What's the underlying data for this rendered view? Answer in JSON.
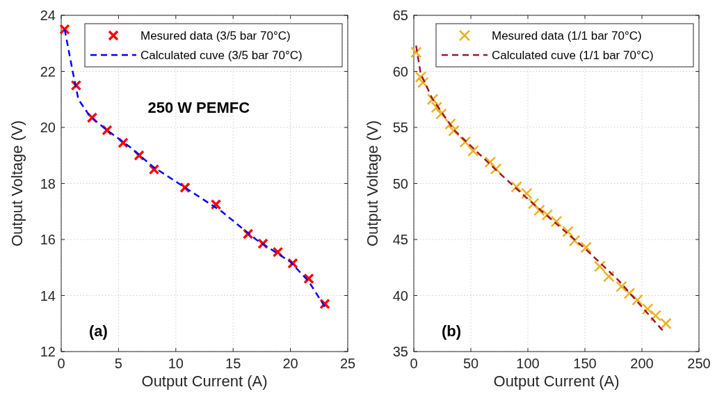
{
  "chart_data": [
    {
      "type": "scatter",
      "title": "250 W PEMFC",
      "xlabel": "Output Current (A)",
      "ylabel": "Output Voltage (V)",
      "annotations": [
        "(a)"
      ],
      "xlim": [
        0,
        25
      ],
      "xticks": [
        0,
        5,
        10,
        15,
        20,
        25
      ],
      "ylim": [
        12,
        24
      ],
      "yticks": [
        12,
        14,
        16,
        18,
        20,
        22,
        24
      ],
      "grid": true,
      "legend": "top right",
      "series": [
        {
          "name": "Mesured data (3/5 bar 70°C)",
          "color": "#ff0000",
          "marker": "cross",
          "x": [
            0.3,
            1.3,
            2.7,
            4,
            5.4,
            6.8,
            8.1,
            10.8,
            13.5,
            16.3,
            17.6,
            18.9,
            20.2,
            21.6,
            23
          ],
          "values": [
            23.5,
            21.5,
            20.35,
            19.9,
            19.45,
            19,
            18.5,
            17.85,
            17.25,
            16.2,
            15.85,
            15.55,
            15.15,
            14.6,
            13.7
          ]
        },
        {
          "type": "line",
          "name": "Calculated cuve (3/5 bar 70°C)",
          "color": "#0000ff",
          "line_style": "dashed",
          "x": [
            0.3,
            1,
            1.5,
            2.5,
            4,
            6,
            8,
            11,
            14,
            17,
            20,
            21.6,
            23
          ],
          "values": [
            23.5,
            22,
            21,
            20.4,
            19.9,
            19.3,
            18.6,
            17.8,
            17,
            16,
            15.2,
            14.5,
            13.6
          ]
        }
      ]
    },
    {
      "type": "scatter",
      "xlabel": "Output Current (A)",
      "ylabel": "Output Voltage (V)",
      "annotations": [
        "(b)"
      ],
      "xlim": [
        0,
        250
      ],
      "xticks": [
        0,
        50,
        100,
        150,
        200,
        250
      ],
      "ylim": [
        35,
        65
      ],
      "yticks": [
        35,
        40,
        45,
        50,
        55,
        60,
        65
      ],
      "grid": true,
      "legend": "top right",
      "series": [
        {
          "name": "Mesured data (1/1 bar 70°C)",
          "color": "#edb120",
          "marker": "cross",
          "x": [
            2,
            6,
            8,
            16.5,
            20,
            24,
            32,
            35,
            45,
            52,
            67,
            72,
            90,
            99,
            105,
            110,
            117,
            125,
            135,
            141,
            151,
            163,
            171,
            182,
            189,
            196,
            205,
            212,
            221
          ],
          "values": [
            61.7,
            59.5,
            59,
            57.5,
            56.8,
            56.2,
            55.3,
            54.7,
            53.7,
            52.9,
            51.9,
            51.3,
            49.7,
            49.1,
            48.2,
            47.6,
            47.2,
            46.6,
            45.7,
            44.9,
            44.3,
            42.6,
            41.7,
            40.8,
            40.2,
            39.6,
            38.8,
            38.2,
            37.5
          ]
        },
        {
          "type": "line",
          "name": "Calculated cuve (1/1 bar 70°C)",
          "color": "#a2142f",
          "line_style": "dashed",
          "x": [
            2,
            6,
            16,
            35,
            70,
            100,
            150,
            180,
            218
          ],
          "values": [
            62.3,
            59.8,
            57.6,
            54.8,
            51.4,
            48.6,
            44.2,
            41.3,
            36.9
          ]
        }
      ]
    }
  ]
}
